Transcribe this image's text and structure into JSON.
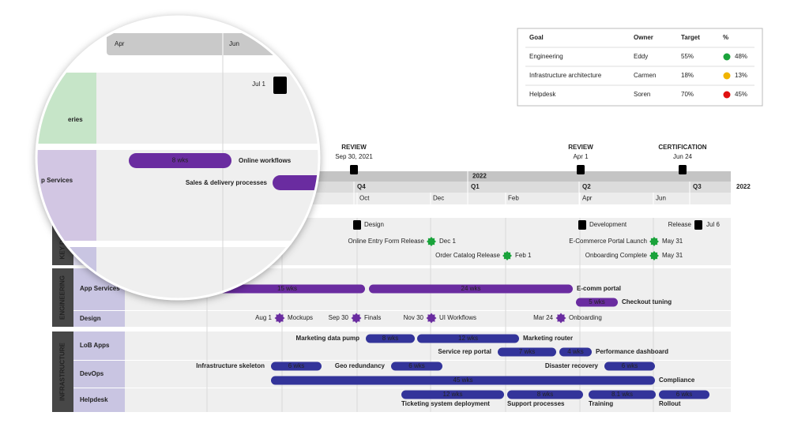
{
  "goals_table": {
    "headers": [
      "Goal",
      "Owner",
      "Target",
      "%"
    ],
    "rows": [
      {
        "goal": "Engineering",
        "owner": "Eddy",
        "target": "55%",
        "actual": "48%",
        "color": "#1aa33b"
      },
      {
        "goal": "Infrastructure architecture",
        "owner": "Carmen",
        "target": "18%",
        "actual": "13%",
        "color": "#f0b400"
      },
      {
        "goal": "Helpdesk",
        "owner": "Soren",
        "target": "70%",
        "actual": "45%",
        "color": "#e01010"
      }
    ]
  },
  "milestones": [
    {
      "title": "REVIEW",
      "date": "Sep 30, 2021"
    },
    {
      "title": "REVIEW",
      "date": "Apr 1"
    },
    {
      "title": "CERTIFICATION",
      "date": "Jun 24"
    }
  ],
  "timeline": {
    "year": "2022",
    "quarters": [
      "Q4",
      "Q1",
      "Q2",
      "Q3"
    ],
    "months": [
      "Oct",
      "Dec",
      "Feb",
      "Apr",
      "Jun"
    ],
    "year_label": "2022"
  },
  "key_dates": {
    "name": "KEY DATES",
    "items": [
      {
        "label": "Design"
      },
      {
        "label": "Development"
      },
      {
        "label": "Release",
        "date": "Jul 6"
      },
      {
        "label": "Online Entry Form Release",
        "date": "Dec 1"
      },
      {
        "label": "E-Commerce Portal Launch",
        "date": "May 31"
      },
      {
        "label": "Order Catalog Release",
        "date": "Feb 1"
      },
      {
        "label": "Onboarding Complete",
        "date": "May 31"
      }
    ]
  },
  "sections": [
    {
      "name": "ENGINEERING",
      "rows": [
        {
          "name": "App Services",
          "bars": [
            {
              "label": "15 wks"
            },
            {
              "label": "24 wks",
              "caption": "E-comm portal"
            },
            {
              "label": "5 wks",
              "caption": "Checkout tuning"
            }
          ]
        },
        {
          "name": "Design",
          "milestones": [
            {
              "date": "Aug 1",
              "label": "Mockups"
            },
            {
              "date": "Sep 30",
              "label": "Finals"
            },
            {
              "date": "Nov 30",
              "label": "UI Workflows"
            },
            {
              "date": "Mar 24",
              "label": "Onboarding"
            }
          ]
        }
      ]
    },
    {
      "name": "INFRASTRUCTURE",
      "rows": [
        {
          "name": "LoB Apps",
          "bars": [
            {
              "label": "8 wks",
              "caption": "Marketing data pump"
            },
            {
              "label": "12 wks",
              "caption": "Marketing router"
            },
            {
              "label": "7 wks",
              "caption": "Service rep portal"
            },
            {
              "label": "4 wks",
              "caption": "Performance dashboard"
            }
          ]
        },
        {
          "name": "DevOps",
          "bars": [
            {
              "label": "6 wks",
              "caption": "Infrastructure skeleton"
            },
            {
              "label": "6 wks",
              "caption": "Geo redundancy"
            },
            {
              "label": "6 wks",
              "caption": "Disaster recovery"
            },
            {
              "label": "45 wks",
              "caption": "Compliance"
            }
          ]
        },
        {
          "name": "Helpdesk",
          "bars": [
            {
              "label": "12 wks",
              "caption": "Ticketing system deployment"
            },
            {
              "label": "8 wks",
              "caption": "Support processes"
            },
            {
              "label": "8.1 wks",
              "caption": "Training"
            },
            {
              "label": "6 wks",
              "caption": "Rollout"
            }
          ]
        }
      ]
    }
  ],
  "magnifier": {
    "months": [
      "Apr",
      "Jun"
    ],
    "milestone_date": "Jul 1",
    "row_fragment": "eries",
    "bar_label": "8 wks",
    "bar_caption": "Online workflows",
    "section_fragment": "p Services",
    "caption2": "Sales & delivery processes"
  }
}
